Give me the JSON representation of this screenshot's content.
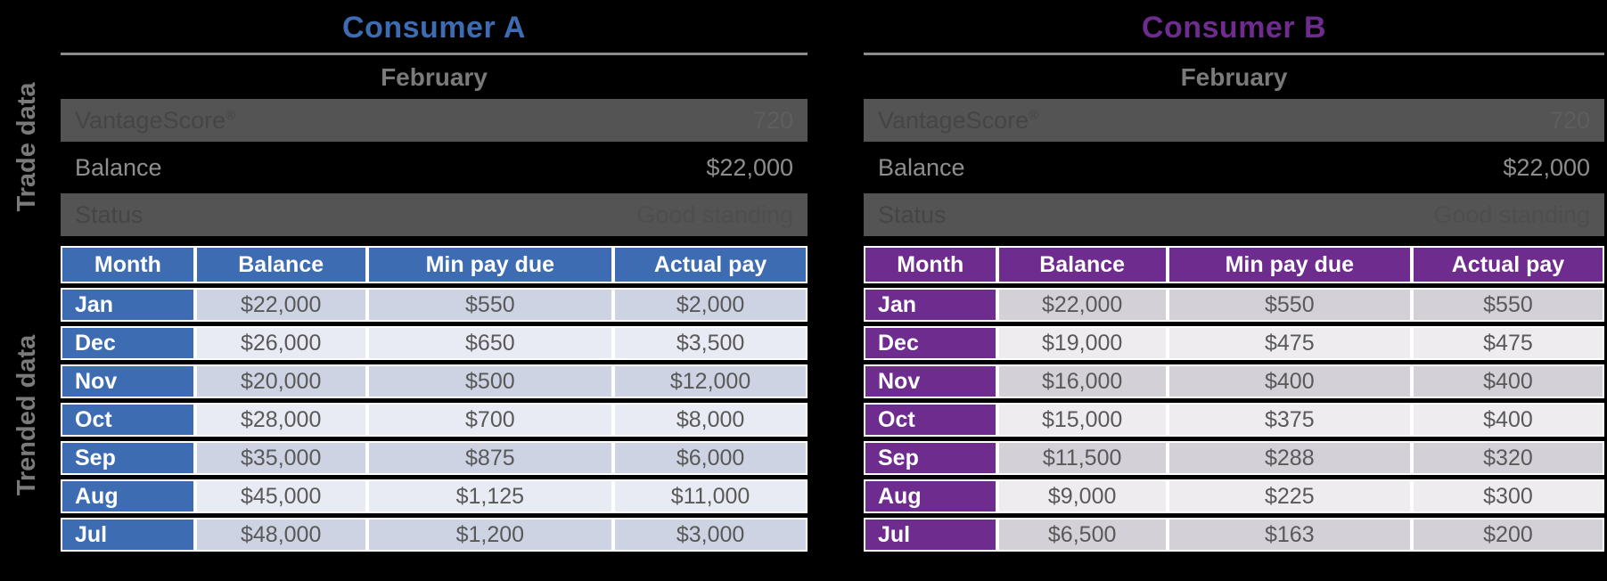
{
  "side_labels": {
    "trade": "Trade data",
    "trended": "Trended data"
  },
  "colors": {
    "background": "#000000",
    "consumer_a_accent": "#3E6CB2",
    "consumer_b_accent": "#6D2C8E",
    "dark_band_background": "#545454",
    "a_row_dark": "#CDD3E3",
    "a_row_light": "#E9EBF4",
    "b_row_dark": "#D3D0D7",
    "b_row_light": "#EEECEF",
    "muted_gray_text": "#7A7A7A"
  },
  "consumers": [
    {
      "title": "Consumer A",
      "period": "February",
      "trade": {
        "score_label": "VantageScore",
        "score_reg": "®",
        "score_value": "720",
        "balance_label": "Balance",
        "balance_value": "$22,000",
        "status_label": "Status",
        "status_value": "Good standing"
      },
      "table": {
        "headers": [
          "Month",
          "Balance",
          "Min pay due",
          "Actual pay"
        ],
        "rows": [
          [
            "Jan",
            "$22,000",
            "$550",
            "$2,000"
          ],
          [
            "Dec",
            "$26,000",
            "$650",
            "$3,500"
          ],
          [
            "Nov",
            "$20,000",
            "$500",
            "$12,000"
          ],
          [
            "Oct",
            "$28,000",
            "$700",
            "$8,000"
          ],
          [
            "Sep",
            "$35,000",
            "$875",
            "$6,000"
          ],
          [
            "Aug",
            "$45,000",
            "$1,125",
            "$11,000"
          ],
          [
            "Jul",
            "$48,000",
            "$1,200",
            "$3,000"
          ]
        ]
      }
    },
    {
      "title": "Consumer B",
      "period": "February",
      "trade": {
        "score_label": "VantageScore",
        "score_reg": "®",
        "score_value": "720",
        "balance_label": "Balance",
        "balance_value": "$22,000",
        "status_label": "Status",
        "status_value": "Good standing"
      },
      "table": {
        "headers": [
          "Month",
          "Balance",
          "Min pay due",
          "Actual pay"
        ],
        "rows": [
          [
            "Jan",
            "$22,000",
            "$550",
            "$550"
          ],
          [
            "Dec",
            "$19,000",
            "$475",
            "$475"
          ],
          [
            "Nov",
            "$16,000",
            "$400",
            "$400"
          ],
          [
            "Oct",
            "$15,000",
            "$375",
            "$400"
          ],
          [
            "Sep",
            "$11,500",
            "$288",
            "$320"
          ],
          [
            "Aug",
            "$9,000",
            "$225",
            "$300"
          ],
          [
            "Jul",
            "$6,500",
            "$163",
            "$200"
          ]
        ]
      }
    }
  ]
}
